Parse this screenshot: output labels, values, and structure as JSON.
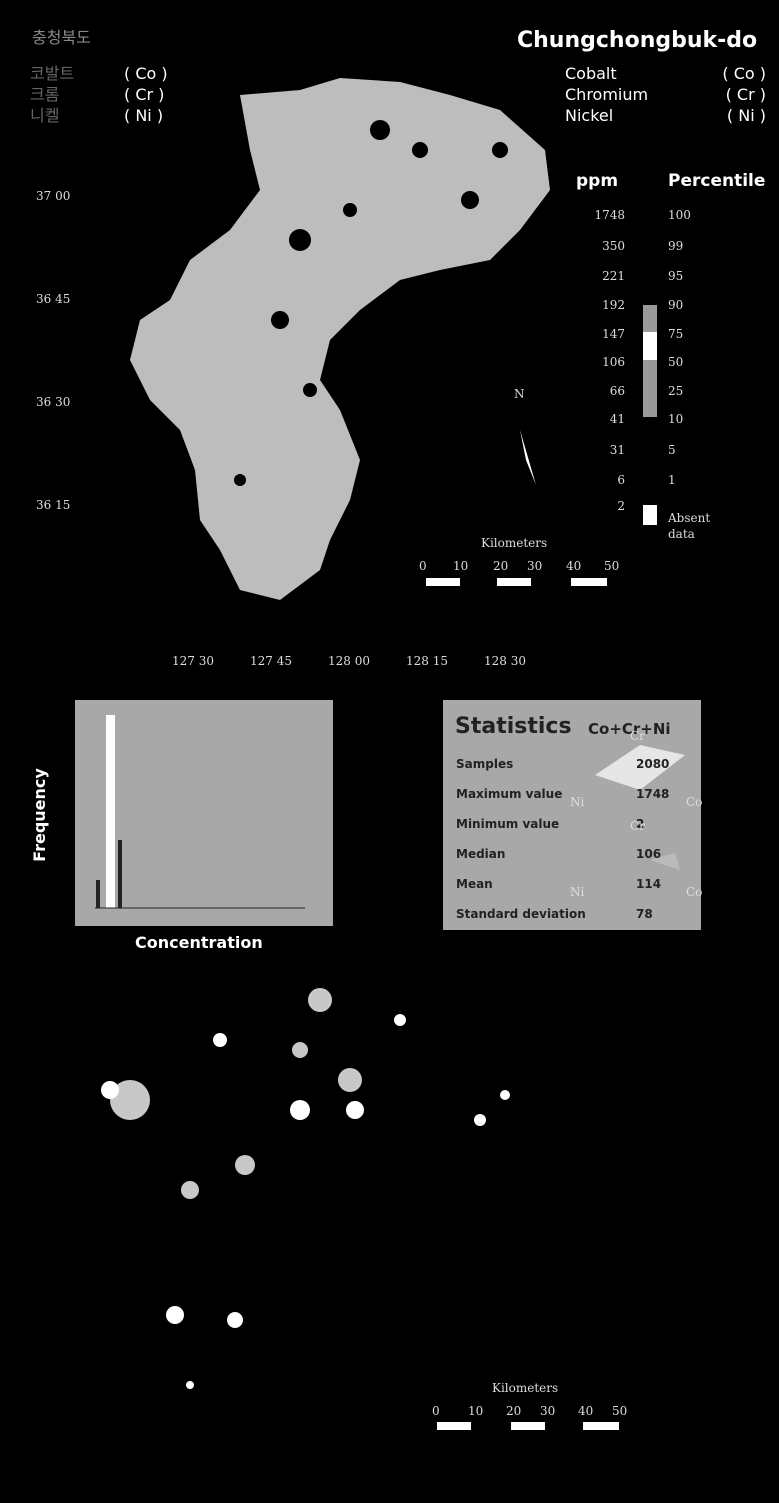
{
  "header": {
    "korean_title": "충청북도",
    "title": "Chungchongbuk-do"
  },
  "elements": [
    {
      "korean": "코발트",
      "name": "Cobalt",
      "symbol": "( Co )"
    },
    {
      "korean": "크롬",
      "name": "Chromium",
      "symbol": "( Cr )"
    },
    {
      "korean": "니켈",
      "name": "Nickel",
      "symbol": "( Ni )"
    }
  ],
  "map": {
    "latitudes": [
      "37 00",
      "36 45",
      "36 30",
      "36 15"
    ],
    "longitudes": [
      "127 30",
      "127 45",
      "128 00",
      "128 15",
      "128 30"
    ],
    "north": "N",
    "scale": {
      "title": "Kilometers",
      "ticks": [
        "0",
        "10",
        "20",
        "30",
        "40",
        "50"
      ]
    }
  },
  "legend": {
    "ppm_header": "ppm",
    "percentile_header": "Percentile",
    "ppm": [
      "1748",
      "350",
      "221",
      "192",
      "147",
      "106",
      "66",
      "41",
      "31",
      "6",
      "2"
    ],
    "percentiles": [
      "100",
      "99",
      "95",
      "90",
      "75",
      "50",
      "25",
      "10",
      "5",
      "1"
    ],
    "absent": "Absent data"
  },
  "histogram": {
    "y_label": "Frequency",
    "x_label": "Concentration"
  },
  "statistics": {
    "title": "Statistics",
    "subtitle": "Co+Cr+Ni",
    "rows": [
      [
        "Samples",
        "2080"
      ],
      [
        "Maximum value",
        "1748"
      ],
      [
        "Minimum value",
        "2"
      ],
      [
        "Median",
        "106"
      ],
      [
        "Mean",
        "114"
      ],
      [
        "Standard deviation",
        "78"
      ]
    ]
  },
  "ternary": [
    {
      "top": "Cr",
      "left": "Ni",
      "right": "Co"
    },
    {
      "top": "Cr",
      "left": "Ni",
      "right": "Co"
    }
  ],
  "map2": {
    "scale": {
      "title": "Kilometers",
      "ticks": [
        "0",
        "10",
        "20",
        "30",
        "40",
        "50"
      ]
    }
  }
}
